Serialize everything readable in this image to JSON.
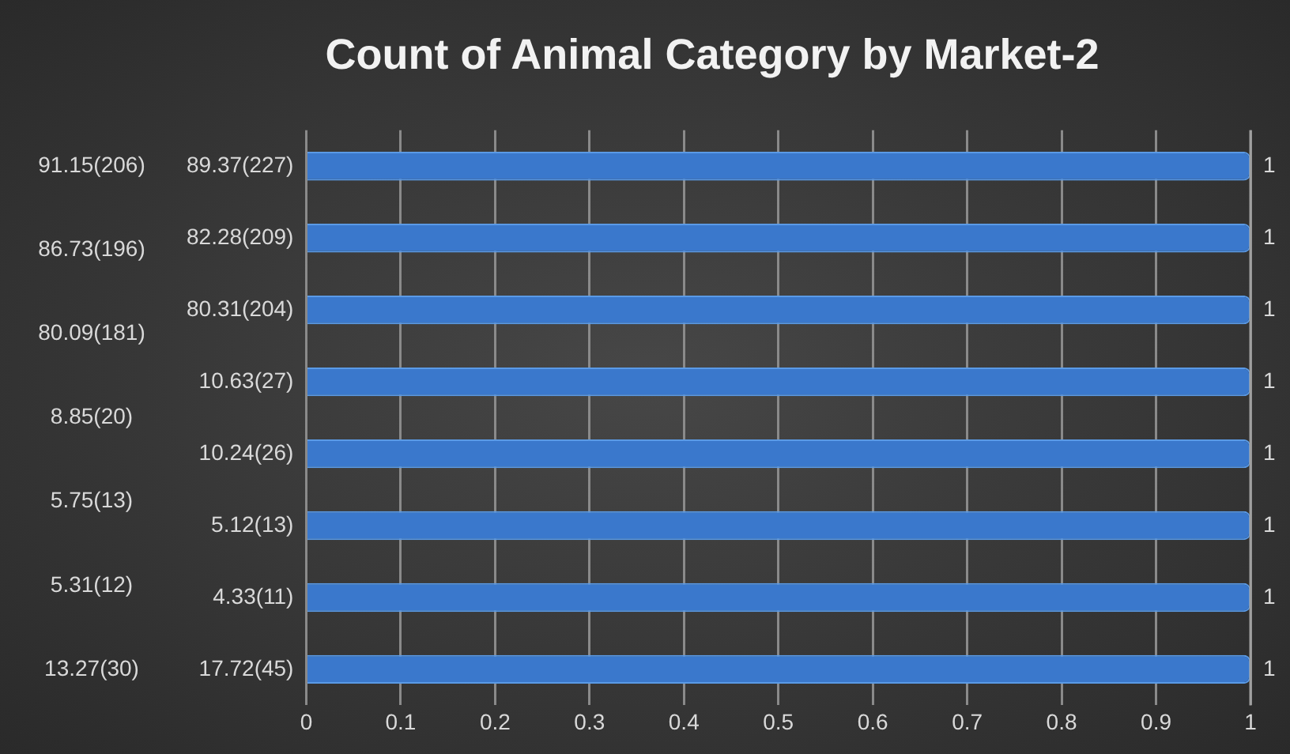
{
  "chart_data": {
    "type": "bar",
    "orientation": "horizontal",
    "title": "Count of Animal Category by Market-2",
    "categories": [
      "89.37(227)",
      "82.28(209)",
      "80.31(204)",
      "10.63(27)",
      "10.24(26)",
      "5.12(13)",
      "4.33(11)",
      "17.72(45)"
    ],
    "values": [
      1,
      1,
      1,
      1,
      1,
      1,
      1,
      1
    ],
    "color": "#3a78cc",
    "xlim": [
      0,
      1
    ],
    "xticks": [
      0,
      0.1,
      0.2,
      0.3,
      0.4,
      0.5,
      0.6,
      0.7,
      0.8,
      0.9,
      1
    ],
    "grid": "x",
    "legend": false,
    "data_labels": true,
    "annotations": [
      "91.15(206)",
      "86.73(196)",
      "80.09(181)",
      "8.85(20)",
      "5.75(13)",
      "5.31(12)",
      "13.27(30)"
    ]
  }
}
